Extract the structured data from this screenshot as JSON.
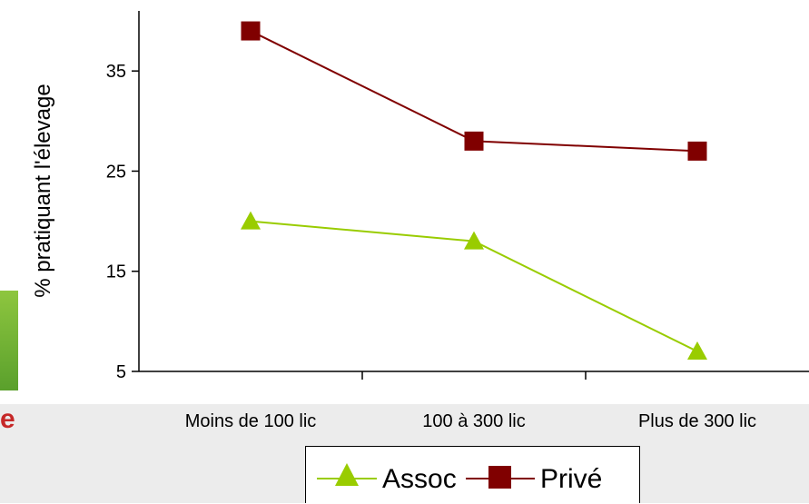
{
  "chart_data": {
    "type": "line",
    "categories": [
      "Moins de 100 lic",
      "100 à 300 lic",
      "Plus de 300 lic"
    ],
    "series": [
      {
        "name": "Assoc",
        "values": [
          20,
          18,
          7
        ],
        "color": "#99cc00",
        "marker": "triangle"
      },
      {
        "name": "Privé",
        "values": [
          39,
          28,
          27
        ],
        "color": "#800000",
        "marker": "square"
      }
    ],
    "xlabel": "",
    "ylabel": "% pratiquant l'élevage",
    "ylim": [
      5,
      41
    ],
    "yticks": [
      5,
      15,
      25,
      35
    ],
    "legend_position": "bottom",
    "grid": false
  }
}
